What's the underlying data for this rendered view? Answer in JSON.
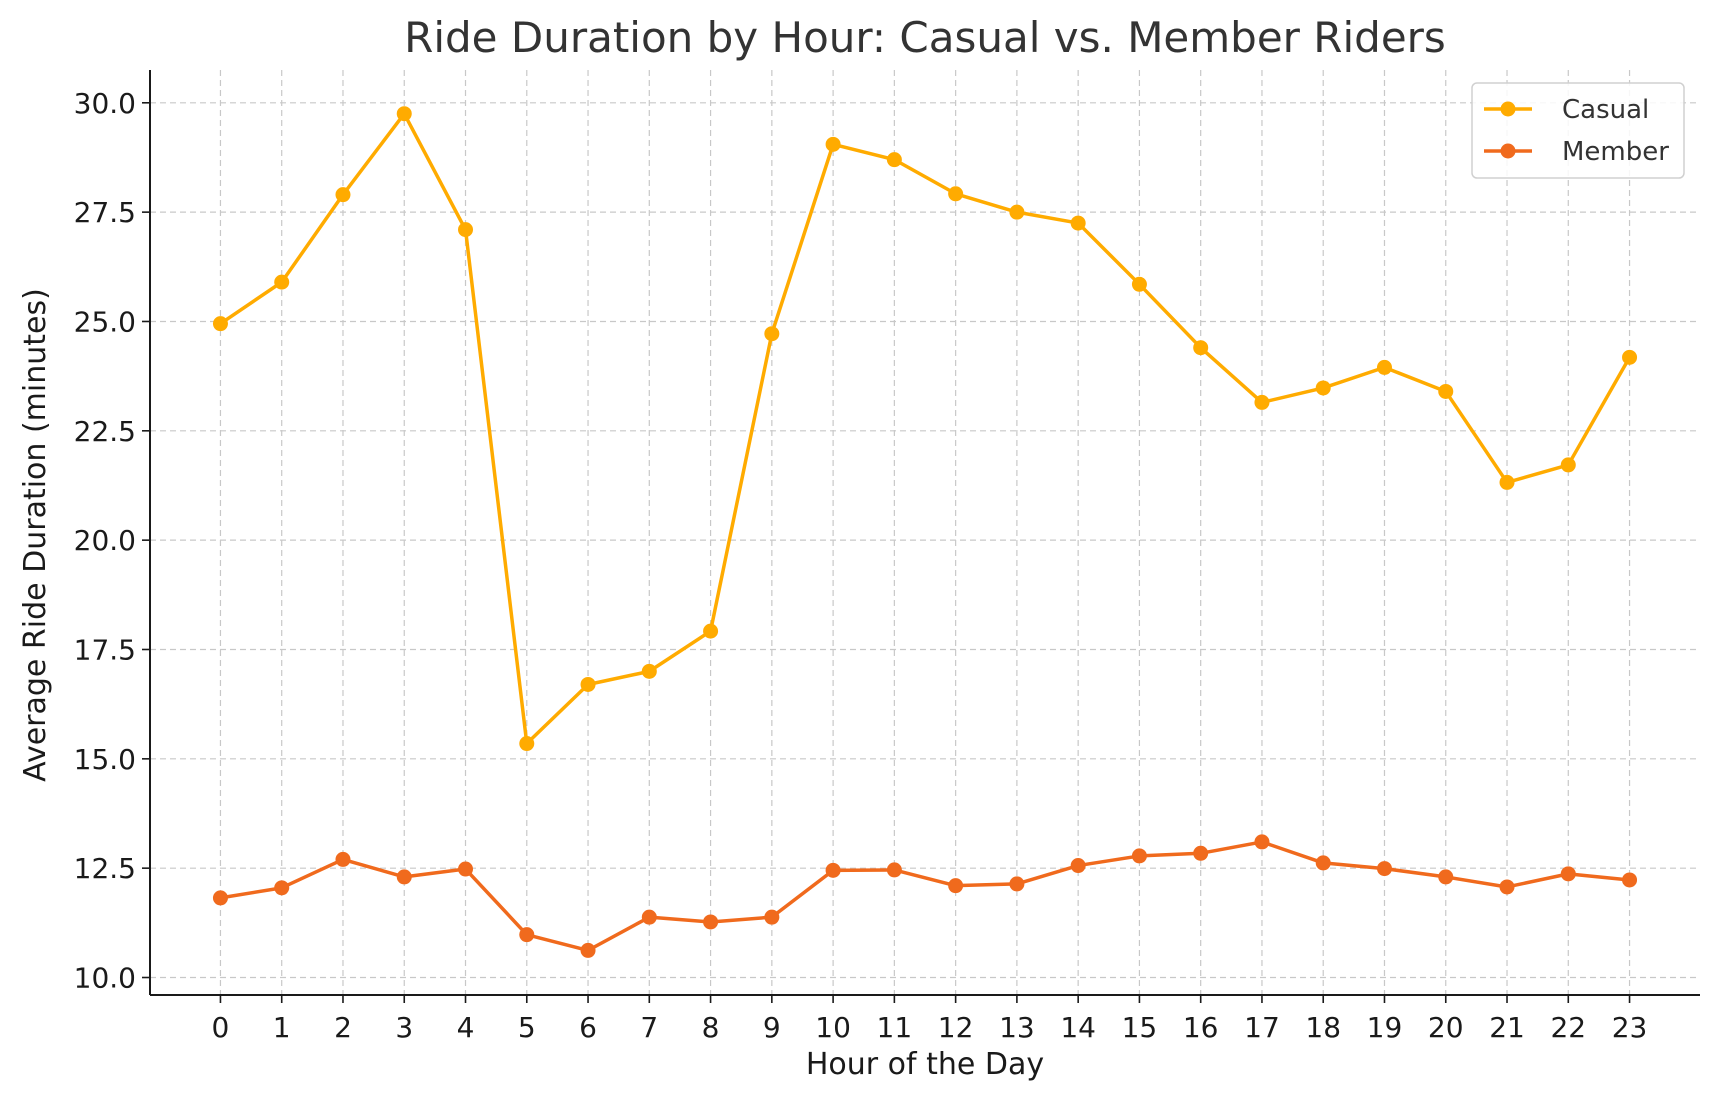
{
  "chart_data": {
    "type": "line",
    "title": "Ride Duration by Hour: Casual vs. Member Riders",
    "xlabel": "Hour of the Day",
    "ylabel": "Average Ride Duration (minutes)",
    "x": [
      0,
      1,
      2,
      3,
      4,
      5,
      6,
      7,
      8,
      9,
      10,
      11,
      12,
      13,
      14,
      15,
      16,
      17,
      18,
      19,
      20,
      21,
      22,
      23
    ],
    "xlim": [
      -1.15,
      24.15
    ],
    "ylim": [
      9.6,
      30.75
    ],
    "yticks": [
      "10.0",
      "12.5",
      "15.0",
      "17.5",
      "20.0",
      "22.5",
      "25.0",
      "27.5",
      "30.0"
    ],
    "grid": true,
    "legend_position": "top-right",
    "series": [
      {
        "name": "Casual",
        "color": "#FFAB00",
        "marker": "circle",
        "values": [
          24.95,
          25.9,
          27.9,
          29.75,
          27.1,
          15.35,
          16.7,
          17.0,
          17.92,
          24.72,
          29.05,
          28.7,
          27.92,
          27.5,
          27.25,
          25.85,
          24.4,
          23.15,
          23.48,
          23.95,
          23.4,
          21.32,
          21.72,
          24.18
        ]
      },
      {
        "name": "Member",
        "color": "#F06A1D",
        "marker": "circle",
        "values": [
          11.82,
          12.05,
          12.7,
          12.3,
          12.48,
          10.98,
          10.62,
          11.38,
          11.27,
          11.38,
          12.45,
          12.46,
          12.1,
          12.14,
          12.56,
          12.78,
          12.84,
          13.1,
          12.62,
          12.49,
          12.3,
          12.07,
          12.37,
          12.23
        ]
      }
    ]
  }
}
